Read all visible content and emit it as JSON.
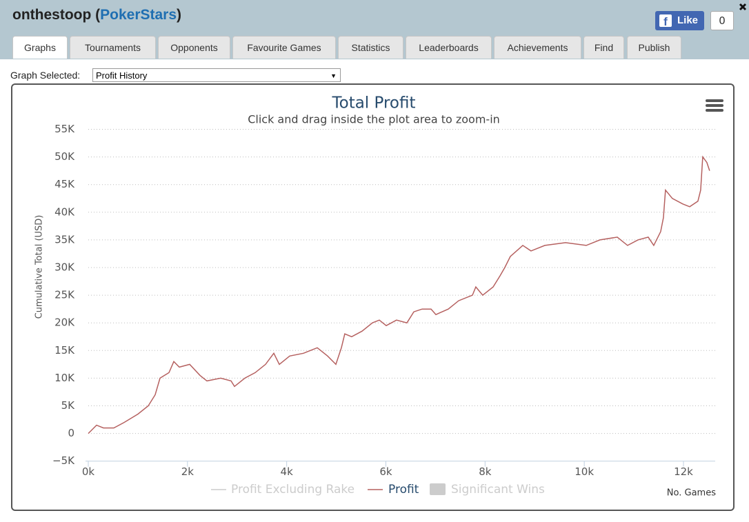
{
  "header": {
    "title_parts": [
      "onthestoop (",
      "PokerStars",
      ")"
    ],
    "like_label": "Like",
    "like_count": "0"
  },
  "tabs": [
    "Graphs",
    "Tournaments",
    "Opponents",
    "Favourite Games",
    "Statistics",
    "Leaderboards",
    "Achievements",
    "Find",
    "Publish"
  ],
  "graph_selector": {
    "label": "Graph Selected:",
    "value": "Profit History"
  },
  "chart_data": {
    "type": "line",
    "title": "Total Profit",
    "subtitle": "Click and drag inside the plot area to zoom-in",
    "y_label": "Cumulative Total (USD)",
    "x_label": "No. Games",
    "x": [
      0,
      167,
      306,
      514,
      723,
      1001,
      1210,
      1349,
      1446,
      1627,
      1724,
      1835,
      2044,
      2253,
      2392,
      2670,
      2878,
      2948,
      3156,
      3365,
      3573,
      3740,
      3852,
      4060,
      4338,
      4616,
      4825,
      4992,
      5103,
      5172,
      5311,
      5520,
      5729,
      5868,
      6007,
      6215,
      6424,
      6563,
      6730,
      6911,
      7008,
      7258,
      7467,
      7745,
      7814,
      7953,
      8162,
      8301,
      8398,
      8509,
      8760,
      8926,
      9205,
      9622,
      10039,
      10317,
      10665,
      10873,
      11082,
      11290,
      11401,
      11540,
      11596,
      11638,
      11777,
      11986,
      12125,
      12291,
      12347,
      12389,
      12472,
      12528
    ],
    "series": [
      {
        "name": "Profit",
        "color": "#b5605f",
        "values": [
          0,
          1500,
          1000,
          1000,
          2000,
          3500,
          5000,
          7000,
          10000,
          11000,
          13000,
          12000,
          12500,
          10500,
          9500,
          10000,
          9500,
          8500,
          10000,
          11000,
          12500,
          14500,
          12500,
          14000,
          14500,
          15500,
          14000,
          12500,
          15500,
          18000,
          17500,
          18500,
          20000,
          20500,
          19500,
          20500,
          20000,
          22000,
          22500,
          22500,
          21500,
          22500,
          24000,
          25000,
          26500,
          25000,
          26500,
          28500,
          30000,
          32000,
          34000,
          33000,
          34000,
          34500,
          34000,
          35000,
          35500,
          34000,
          35000,
          35500,
          34000,
          36500,
          39000,
          44000,
          42500,
          41500,
          41000,
          42000,
          44000,
          50000,
          49000,
          47500
        ]
      }
    ],
    "inactive_legend": [
      "Profit Excluding Rake",
      "Significant Wins"
    ],
    "xlim": [
      0,
      12640
    ],
    "xticks": [
      {
        "value": 0,
        "label": "0k"
      },
      {
        "value": 2000,
        "label": "2k"
      },
      {
        "value": 4000,
        "label": "4k"
      },
      {
        "value": 6000,
        "label": "6k"
      },
      {
        "value": 8000,
        "label": "8k"
      },
      {
        "value": 10000,
        "label": "10k"
      },
      {
        "value": 12000,
        "label": "12k"
      }
    ],
    "ylim": [
      -5000,
      55000
    ],
    "yticks": [
      {
        "value": -5000,
        "label": "−5K"
      },
      0,
      {
        "value": 5000,
        "label": "5K"
      },
      {
        "value": 10000,
        "label": "10K"
      },
      {
        "value": 15000,
        "label": "15K"
      },
      {
        "value": 20000,
        "label": "20K"
      },
      {
        "value": 25000,
        "label": "25K"
      },
      {
        "value": 30000,
        "label": "30K"
      },
      {
        "value": 35000,
        "label": "35K"
      },
      {
        "value": 40000,
        "label": "40K"
      },
      {
        "value": 45000,
        "label": "45K"
      },
      {
        "value": 50000,
        "label": "50K"
      },
      {
        "value": 55000,
        "label": "55K"
      }
    ],
    "grid": true
  }
}
